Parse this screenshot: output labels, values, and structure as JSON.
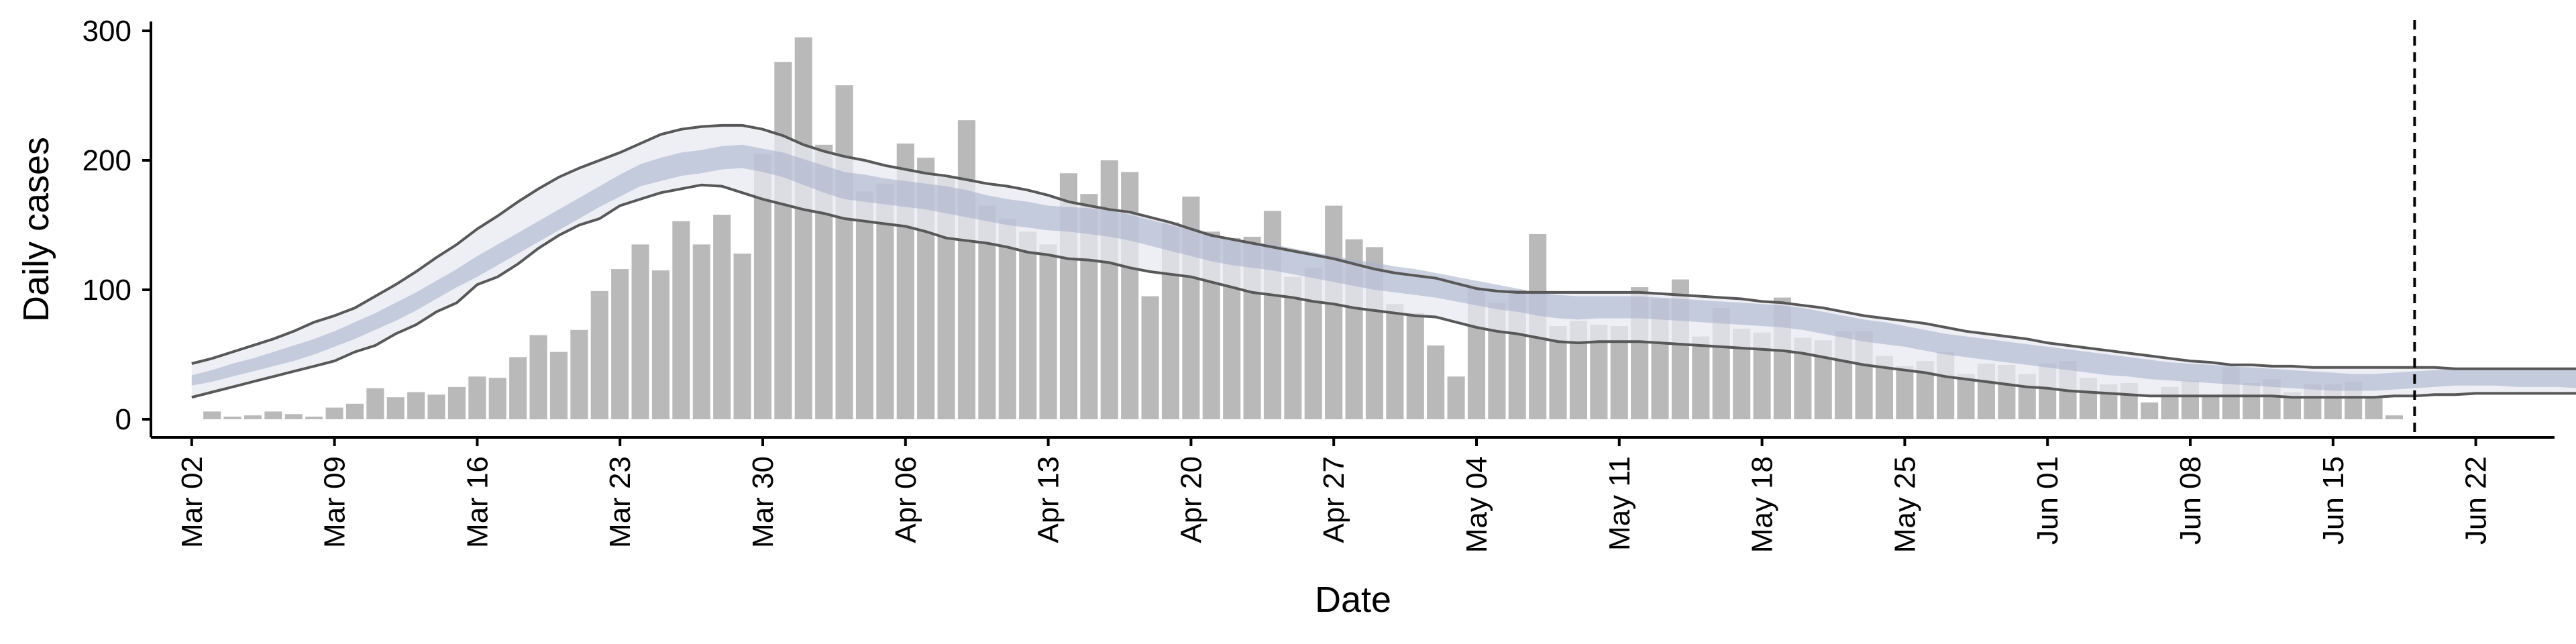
{
  "chart_data": {
    "type": "bar",
    "xlabel": "Date",
    "ylabel": "Daily cases",
    "ylim": [
      0,
      315
    ],
    "y_ticks": [
      0,
      100,
      200,
      300
    ],
    "x_ticks": [
      "Mar 02",
      "Mar 09",
      "Mar 16",
      "Mar 23",
      "Mar 30",
      "Apr 06",
      "Apr 13",
      "Apr 20",
      "Apr 27",
      "May 04",
      "May 11",
      "May 18",
      "May 25",
      "Jun 01",
      "Jun 08",
      "Jun 15",
      "Jun 22"
    ],
    "x_start": "2020-02-29",
    "reference_line_date": "2020-06-19",
    "bar_color": "#b9b9b9",
    "band_outer_color": "#e8eaf2",
    "band_inner_color": "#a9b3cc",
    "line_color": "#585858",
    "bars": {
      "start_date": "2020-03-03",
      "values": [
        6,
        2,
        3,
        6,
        4,
        2,
        9,
        12,
        24,
        17,
        21,
        19,
        25,
        33,
        32,
        48,
        65,
        52,
        69,
        99,
        116,
        135,
        115,
        153,
        135,
        158,
        128,
        205,
        276,
        295,
        212,
        258,
        176,
        182,
        213,
        202,
        187,
        231,
        165,
        155,
        145,
        135,
        190,
        174,
        200,
        191,
        95,
        152,
        172,
        145,
        140,
        141,
        161,
        110,
        117,
        165,
        139,
        133,
        89,
        82,
        57,
        33,
        101,
        90,
        100,
        143,
        72,
        76,
        73,
        72,
        102,
        93,
        108,
        64,
        86,
        70,
        67,
        94,
        63,
        61,
        68,
        68,
        49,
        41,
        45,
        52,
        35,
        43,
        42,
        35,
        43,
        45,
        32,
        27,
        28,
        13,
        25,
        30,
        18,
        40,
        28,
        31,
        21,
        27,
        27,
        29,
        18,
        3
      ]
    },
    "median_start_date": "2020-03-02",
    "median": [
      30,
      34,
      38,
      42,
      46,
      51,
      56,
      62,
      68,
      75,
      83,
      91,
      100,
      109,
      118,
      127,
      136,
      145,
      154,
      163,
      172,
      181,
      189,
      193,
      197,
      199,
      202,
      203,
      200,
      197,
      192,
      186,
      180,
      178,
      176,
      174,
      172,
      170,
      167,
      163,
      160,
      158,
      155,
      154,
      153,
      151,
      148,
      144,
      140,
      136,
      132,
      129,
      127,
      125,
      122,
      119,
      116,
      113,
      110,
      107,
      105,
      103,
      100,
      97,
      94,
      91,
      88,
      86,
      85,
      85,
      85,
      85,
      84,
      83,
      82,
      81,
      80,
      79,
      78,
      76,
      73,
      70,
      67,
      65,
      62,
      59,
      56,
      54,
      52,
      50,
      48,
      46,
      44,
      42,
      40,
      38,
      36,
      35,
      34,
      32,
      31,
      30,
      29,
      28,
      27,
      26,
      26,
      26,
      27,
      28,
      29,
      30,
      30,
      30,
      30,
      30,
      30,
      28,
      27,
      27
    ],
    "inner_band": {
      "lower": [
        26,
        29,
        33,
        37,
        41,
        45,
        50,
        56,
        62,
        69,
        76,
        84,
        93,
        102,
        110,
        119,
        128,
        137,
        146,
        155,
        164,
        172,
        180,
        184,
        188,
        190,
        193,
        194,
        191,
        187,
        181,
        175,
        170,
        168,
        166,
        164,
        162,
        159,
        156,
        153,
        150,
        148,
        146,
        145,
        143,
        141,
        138,
        134,
        130,
        126,
        122,
        119,
        117,
        115,
        112,
        109,
        106,
        103,
        100,
        98,
        96,
        94,
        91,
        88,
        85,
        83,
        80,
        78,
        77,
        78,
        78,
        78,
        77,
        76,
        75,
        74,
        73,
        72,
        71,
        69,
        66,
        63,
        60,
        58,
        56,
        53,
        50,
        48,
        46,
        44,
        42,
        40,
        38,
        36,
        34,
        33,
        31,
        30,
        29,
        28,
        27,
        26,
        25,
        24,
        23,
        22,
        22,
        22,
        23,
        24,
        25,
        26,
        26,
        26,
        25,
        25,
        25,
        24,
        23,
        22
      ],
      "upper": [
        34,
        38,
        43,
        47,
        52,
        57,
        62,
        68,
        75,
        82,
        90,
        98,
        107,
        116,
        126,
        135,
        144,
        153,
        162,
        171,
        180,
        189,
        197,
        202,
        206,
        208,
        211,
        212,
        209,
        206,
        201,
        196,
        191,
        189,
        186,
        184,
        182,
        180,
        177,
        173,
        170,
        168,
        165,
        164,
        163,
        161,
        158,
        154,
        150,
        146,
        142,
        139,
        137,
        135,
        132,
        129,
        126,
        123,
        121,
        118,
        116,
        113,
        110,
        107,
        104,
        101,
        98,
        96,
        95,
        95,
        95,
        95,
        94,
        93,
        92,
        91,
        90,
        89,
        88,
        86,
        83,
        80,
        77,
        75,
        72,
        69,
        66,
        64,
        62,
        60,
        58,
        56,
        54,
        52,
        50,
        48,
        46,
        44,
        43,
        42,
        41,
        40,
        39,
        38,
        37,
        36,
        35,
        35,
        36,
        37,
        38,
        39,
        39,
        39,
        39,
        39,
        40,
        38,
        36,
        36
      ]
    },
    "interval_lower": [
      17,
      21,
      25,
      29,
      33,
      37,
      41,
      45,
      52,
      57,
      66,
      73,
      83,
      90,
      104,
      110,
      120,
      132,
      142,
      150,
      155,
      165,
      170,
      175,
      178,
      181,
      180,
      175,
      170,
      166,
      162,
      159,
      155,
      153,
      151,
      149,
      145,
      140,
      138,
      136,
      133,
      129,
      127,
      124,
      123,
      121,
      117,
      114,
      112,
      110,
      106,
      102,
      98,
      96,
      94,
      91,
      89,
      86,
      84,
      82,
      80,
      79,
      75,
      71,
      68,
      66,
      63,
      60,
      59,
      60,
      60,
      60,
      59,
      58,
      57,
      56,
      55,
      54,
      53,
      51,
      48,
      45,
      42,
      40,
      38,
      36,
      33,
      31,
      29,
      27,
      25,
      24,
      22,
      21,
      20,
      19,
      18,
      18,
      18,
      18,
      18,
      18,
      18,
      17,
      17,
      17,
      17,
      17,
      18,
      18,
      19,
      19,
      20,
      20,
      20,
      20,
      20,
      20,
      21,
      21
    ],
    "interval_upper": [
      43,
      47,
      52,
      57,
      62,
      68,
      75,
      80,
      86,
      95,
      104,
      114,
      125,
      135,
      147,
      157,
      168,
      178,
      187,
      194,
      200,
      206,
      213,
      220,
      224,
      226,
      227,
      227,
      224,
      219,
      212,
      207,
      203,
      200,
      196,
      193,
      190,
      188,
      185,
      182,
      180,
      177,
      173,
      168,
      165,
      162,
      160,
      156,
      152,
      147,
      142,
      139,
      136,
      133,
      130,
      127,
      124,
      120,
      116,
      113,
      111,
      109,
      105,
      101,
      99,
      98,
      98,
      98,
      98,
      98,
      98,
      98,
      97,
      96,
      95,
      94,
      93,
      91,
      90,
      88,
      86,
      83,
      80,
      78,
      76,
      74,
      71,
      68,
      66,
      64,
      62,
      59,
      57,
      55,
      53,
      51,
      49,
      47,
      45,
      44,
      42,
      42,
      41,
      41,
      40,
      40,
      40,
      40,
      40,
      40,
      40,
      39,
      39,
      39,
      39,
      39,
      39,
      39,
      40,
      41
    ]
  }
}
